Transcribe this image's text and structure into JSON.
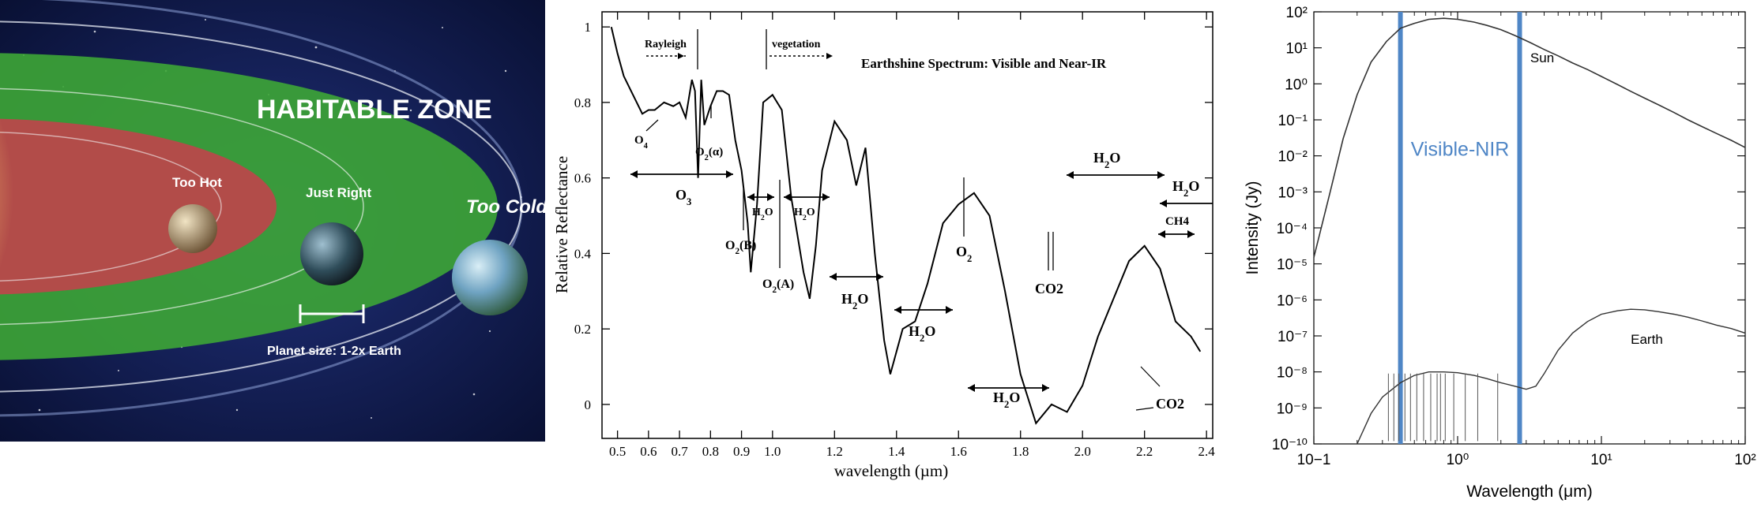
{
  "habitable_zone": {
    "title": "HABITABLE ZONE",
    "labels": {
      "too_hot": "Too Hot",
      "just_right": "Just Right",
      "too_cold": "Too Cold"
    },
    "size_note": "Planet size: 1-2x Earth",
    "colors": {
      "space": "#0d1a44",
      "hot_zone": "#b8484a",
      "habitable_zone": "#3da636",
      "sun": "#fff6c0"
    }
  },
  "chart_data": [
    {
      "type": "line",
      "title": "Earthshine Spectrum: Visible and Near-IR",
      "xlabel": "wavelength (µm)",
      "ylabel": "Relative Reflectance",
      "xlim": [
        0.45,
        2.42
      ],
      "ylim": [
        -0.09,
        1.04
      ],
      "xticks": [
        "0.5",
        "0.6",
        "0.7",
        "0.8",
        "0.9",
        "1.0",
        "1.2",
        "1.4",
        "1.6",
        "1.8",
        "2.0",
        "2.2",
        "2.4"
      ],
      "yticks": [
        "0",
        "0.2",
        "0.4",
        "0.6",
        "0.8",
        "1"
      ],
      "series": [
        {
          "x": [
            0.48,
            0.5,
            0.52,
            0.55,
            0.58,
            0.6,
            0.62,
            0.65,
            0.68,
            0.7,
            0.72,
            0.74,
            0.75,
            0.76,
            0.77,
            0.78,
            0.8,
            0.82,
            0.84,
            0.86,
            0.88,
            0.9,
            0.92,
            0.93,
            0.95,
            0.97,
            1.0,
            1.03,
            1.06,
            1.1,
            1.12,
            1.14,
            1.16,
            1.2,
            1.24,
            1.27,
            1.3,
            1.33,
            1.36,
            1.38,
            1.42,
            1.46,
            1.5,
            1.55,
            1.6,
            1.65,
            1.7,
            1.75,
            1.8,
            1.85,
            1.9,
            1.95,
            2.0,
            2.05,
            2.1,
            2.15,
            2.2,
            2.25,
            2.3,
            2.35,
            2.38
          ],
          "y": [
            1.0,
            0.93,
            0.87,
            0.82,
            0.77,
            0.78,
            0.78,
            0.8,
            0.79,
            0.8,
            0.76,
            0.86,
            0.83,
            0.6,
            0.86,
            0.74,
            0.79,
            0.83,
            0.83,
            0.82,
            0.7,
            0.62,
            0.48,
            0.35,
            0.53,
            0.8,
            0.82,
            0.78,
            0.55,
            0.35,
            0.28,
            0.42,
            0.62,
            0.75,
            0.7,
            0.58,
            0.68,
            0.4,
            0.17,
            0.08,
            0.2,
            0.22,
            0.32,
            0.48,
            0.53,
            0.56,
            0.5,
            0.3,
            0.08,
            -0.05,
            0.0,
            -0.02,
            0.05,
            0.18,
            0.28,
            0.38,
            0.42,
            0.36,
            0.22,
            0.18,
            0.14
          ]
        }
      ],
      "annotations": {
        "rayleigh": "Rayleigh",
        "vegetation": "vegetation",
        "o4": "O4",
        "o2_alpha": "O2(α)",
        "o3": "O3",
        "o2_b": "O2(B)",
        "o2_a": "O2(A)",
        "h2o": "H2O",
        "o2": "O2",
        "co2": "CO2",
        "ch4": "CH4"
      }
    },
    {
      "type": "line",
      "xlabel": "Wavelength (μm)",
      "ylabel": "Intensity (Jy)",
      "xscale": "log",
      "yscale": "log",
      "xlim": [
        0.1,
        100
      ],
      "ylim": [
        1e-10,
        100
      ],
      "xtick_labels": [
        "10−1",
        "10⁰",
        "10¹",
        "10²"
      ],
      "ytick_labels": [
        "10⁻¹⁰",
        "10⁻⁹",
        "10⁻⁸",
        "10⁻⁷",
        "10⁻⁶",
        "10⁻⁵",
        "10⁻⁴",
        "10⁻³",
        "10⁻²",
        "10⁻¹",
        "10⁰",
        "10¹",
        "10²"
      ],
      "band_label": "Visible-NIR",
      "band": [
        0.4,
        2.7
      ],
      "series": [
        {
          "name": "Sun",
          "x": [
            0.1,
            0.13,
            0.16,
            0.2,
            0.25,
            0.32,
            0.4,
            0.5,
            0.63,
            0.8,
            1.0,
            1.3,
            1.6,
            2.0,
            2.5,
            3.2,
            4,
            5,
            6.3,
            8,
            10,
            13,
            16,
            20,
            25,
            32,
            40,
            50,
            63,
            80,
            100
          ],
          "y": [
            1.5e-05,
            0.001,
            0.03,
            0.5,
            4,
            15,
            35,
            48,
            62,
            66,
            62,
            52,
            42,
            32,
            22,
            14,
            9,
            6,
            3.8,
            2.5,
            1.6,
            0.95,
            0.62,
            0.4,
            0.26,
            0.16,
            0.1,
            0.065,
            0.042,
            0.027,
            0.017
          ]
        },
        {
          "name": "Earth",
          "x": [
            0.2,
            0.25,
            0.3,
            0.4,
            0.5,
            0.63,
            0.8,
            1.0,
            1.3,
            1.6,
            2.0,
            2.5,
            3.0,
            3.5,
            4,
            5,
            6.3,
            8,
            10,
            13,
            16,
            20,
            25,
            32,
            40,
            50,
            63,
            80,
            100
          ],
          "y": [
            1e-10,
            7e-10,
            2e-09,
            5e-09,
            8e-09,
            1e-08,
            1e-08,
            9.5e-09,
            8e-09,
            6.5e-09,
            5e-09,
            4e-09,
            3.3e-09,
            4e-09,
            9e-09,
            4e-08,
            1.2e-07,
            2.5e-07,
            4e-07,
            5e-07,
            5.5e-07,
            5.3e-07,
            4.7e-07,
            4e-07,
            3.3e-07,
            2.6e-07,
            2e-07,
            1.6e-07,
            1.2e-07
          ]
        }
      ]
    }
  ]
}
